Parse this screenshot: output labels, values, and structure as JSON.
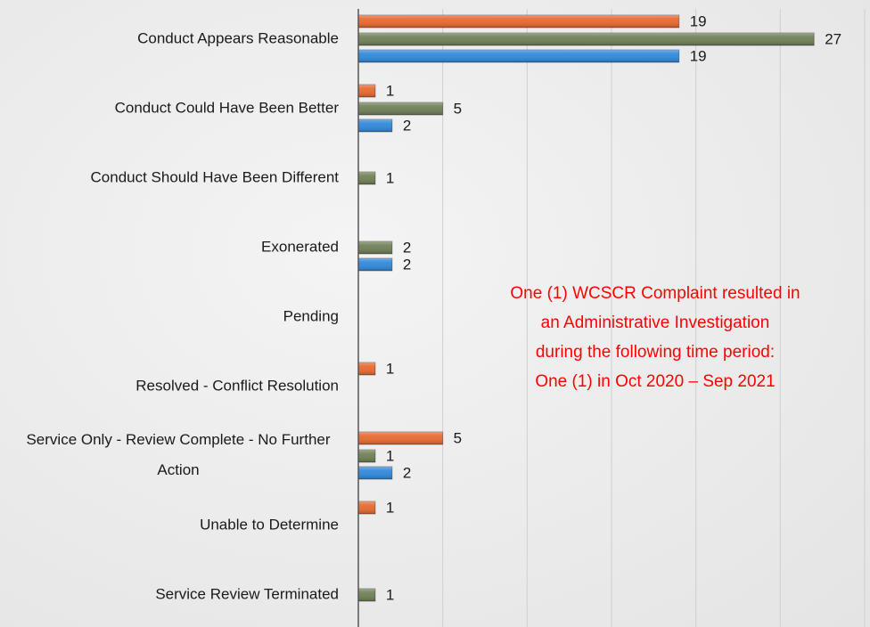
{
  "chart_data": {
    "type": "bar",
    "orientation": "horizontal",
    "categories": [
      "Conduct Appears Reasonable",
      "Conduct Could Have Been Better",
      "Conduct Should Have Been Different",
      "Exonerated",
      "Pending",
      "Resolved - Conflict Resolution",
      "Service Only - Review Complete - No Further Action",
      "Unable to Determine",
      "Service Review Terminated"
    ],
    "series": [
      {
        "color": "#e8703a",
        "values": [
          19,
          1,
          null,
          null,
          null,
          1,
          5,
          1,
          null
        ]
      },
      {
        "color": "#76865f",
        "values": [
          27,
          5,
          1,
          2,
          null,
          null,
          1,
          null,
          1
        ]
      },
      {
        "color": "#3a8edb",
        "values": [
          19,
          2,
          null,
          2,
          null,
          null,
          2,
          null,
          null
        ]
      }
    ],
    "xlim": [
      0,
      30
    ],
    "xticks": [
      0,
      5,
      10,
      15,
      20,
      25,
      30
    ],
    "grid": true,
    "annotation": [
      "One (1) WCSCR Complaint resulted in",
      "an Administrative Investigation",
      "during the following time period:",
      "One (1) in Oct 2020 – Sep 2021"
    ],
    "annotation_color": "#ff0000"
  }
}
